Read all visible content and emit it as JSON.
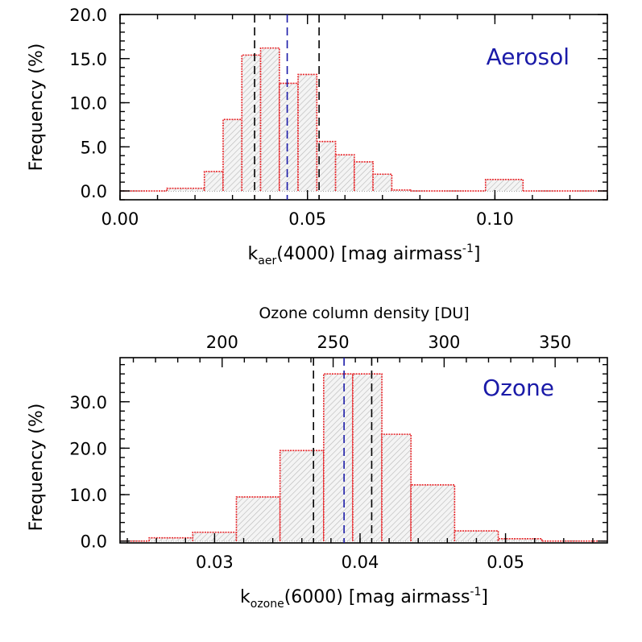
{
  "chart_data": [
    {
      "type": "histogram",
      "panel_label": "Aerosol",
      "panel_label_color": "#1a1aa8",
      "xlabel_main": "k",
      "xlabel_sub": "aer",
      "xlabel_rest": "(4000) [mag airmass",
      "xlabel_sup": "-1",
      "xlabel_close": "]",
      "ylabel": "Frequency (%)",
      "xlim": [
        0.0,
        0.13
      ],
      "ylim": [
        -1.0,
        20.0
      ],
      "xticks": [
        0.0,
        0.05,
        0.1
      ],
      "xtick_labels": [
        "0.00",
        "0.05",
        "0.10"
      ],
      "yticks": [
        0.0,
        5.0,
        10.0,
        15.0,
        20.0
      ],
      "ytick_labels": [
        "0.0",
        "5.0",
        "10.0",
        "15.0",
        "20.0"
      ],
      "bin_edges": [
        0.0,
        0.0125,
        0.0225,
        0.0275,
        0.0325,
        0.0375,
        0.0425,
        0.0475,
        0.0525,
        0.0575,
        0.0625,
        0.0675,
        0.0725,
        0.0775,
        0.0975,
        0.1075,
        0.13
      ],
      "bin_values": [
        0.0,
        0.3,
        2.2,
        8.1,
        15.4,
        16.2,
        12.2,
        13.2,
        5.6,
        4.1,
        3.3,
        1.9,
        0.1,
        0.0,
        1.3,
        0.0
      ],
      "quartiles_black": [
        0.0359,
        0.0531
      ],
      "median_blue": 0.0446,
      "median_color": "#1a1aa8",
      "hist_color": "#e8262a"
    },
    {
      "type": "histogram",
      "panel_label": "Ozone",
      "panel_label_color": "#1a1aa8",
      "xlabel_main": "k",
      "xlabel_sub": "ozone",
      "xlabel_rest": "(6000) [mag airmass",
      "xlabel_sup": "-1",
      "xlabel_close": "]",
      "ylabel": "Frequency (%)",
      "top_axis_label": "Ozone column density [DU]",
      "top_ticks": [
        200,
        250,
        300,
        350
      ],
      "top_tick_labels": [
        "200",
        "250",
        "300",
        "350"
      ],
      "top_axis_scale": 0.0001526,
      "xlim": [
        0.0235,
        0.057
      ],
      "ylim": [
        -0.4,
        39.5
      ],
      "xticks": [
        0.03,
        0.04,
        0.05
      ],
      "xtick_labels": [
        "0.03",
        "0.04",
        "0.05"
      ],
      "yticks": [
        0.0,
        10.0,
        20.0,
        30.0
      ],
      "ytick_labels": [
        "0.0",
        "10.0",
        "20.0",
        "30.0"
      ],
      "bin_edges": [
        0.0235,
        0.0255,
        0.0285,
        0.0315,
        0.0345,
        0.0375,
        0.0395,
        0.0415,
        0.0435,
        0.0465,
        0.0495,
        0.0525,
        0.057
      ],
      "bin_values": [
        0.0,
        0.7,
        1.9,
        9.5,
        19.5,
        36.0,
        36.0,
        23.0,
        12.1,
        2.2,
        0.5,
        0.0
      ],
      "quartiles_black": [
        0.0368,
        0.0408
      ],
      "median_blue": 0.0389,
      "median_color": "#1a1aa8",
      "hist_color": "#e8262a"
    }
  ]
}
